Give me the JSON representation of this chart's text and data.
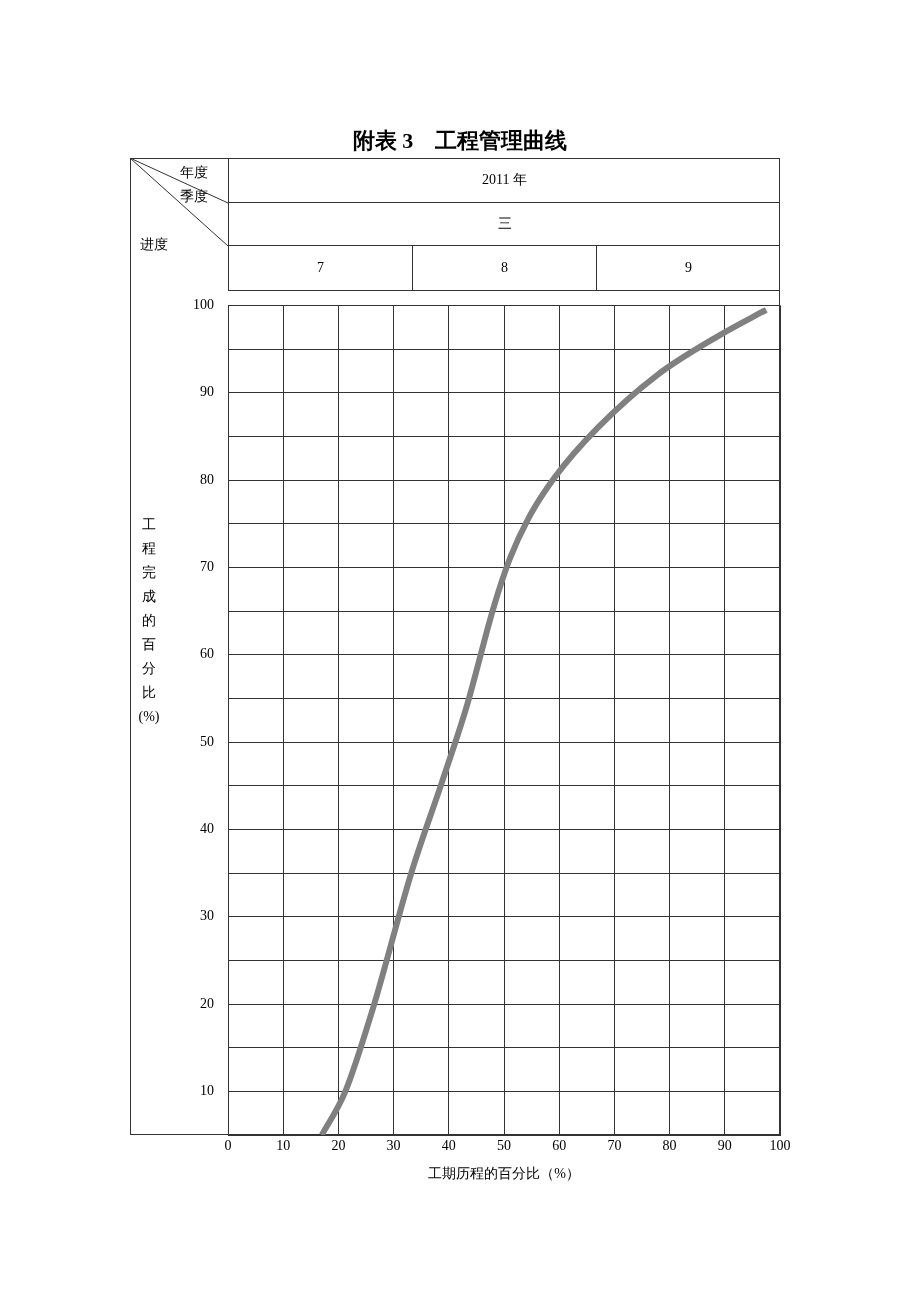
{
  "chart_data": {
    "type": "line",
    "title": "附表 3　工程管理曲线",
    "xlabel": "工期历程的百分比（%）",
    "ylabel": "工程完成的百分比(%)",
    "annotations": [
      "年度",
      "季度",
      "进度",
      "2011 年",
      "三",
      "7",
      "8",
      "9"
    ],
    "series": [
      {
        "color": "#808080",
        "x": [
          17,
          21.2,
          26.4,
          33.2,
          38.7,
          43.2,
          48.2,
          51,
          54.5,
          59.3,
          67,
          77.7,
          89.1,
          97.5
        ],
        "values": [
          5,
          9.9,
          19.8,
          35,
          45.3,
          54,
          65.6,
          70.9,
          75.7,
          80.4,
          86,
          92,
          96.6,
          99.5
        ]
      }
    ],
    "xlim": [
      0,
      100
    ],
    "xticks": [
      0,
      10,
      20,
      30,
      40,
      50,
      60,
      70,
      80,
      90,
      100
    ],
    "ylim": [
      5,
      100
    ],
    "yticks": [
      {
        "value": 5,
        "label": null
      },
      10,
      {
        "value": 15,
        "label": null
      },
      20,
      {
        "value": 25,
        "label": null
      },
      30,
      {
        "value": 35,
        "label": null
      },
      40,
      {
        "value": 45,
        "label": null
      },
      50,
      {
        "value": 55,
        "label": null
      },
      60,
      {
        "value": 65,
        "label": null
      },
      70,
      {
        "value": 75,
        "label": null
      },
      80,
      {
        "value": 85,
        "label": null
      },
      90,
      {
        "value": 95,
        "label": null
      },
      100
    ],
    "grid": true,
    "legend": false,
    "marker": "none",
    "line_style": "solid"
  }
}
